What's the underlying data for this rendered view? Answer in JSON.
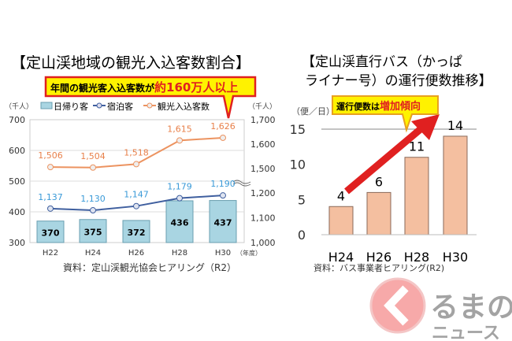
{
  "chart_data": [
    {
      "type": "bar+line",
      "title": "【定山渓地域の観光入込客数割合】",
      "callout": {
        "prefix": "年間の観光客入込客数が",
        "highlight": "約160万人以上"
      },
      "left_unit": "（千人）",
      "right_unit": "（千人）",
      "xlabel_unit": "（年度）",
      "categories": [
        "H22",
        "H24",
        "H26",
        "H28",
        "H30"
      ],
      "left_ticks": [
        "700",
        "600",
        "500",
        "400",
        "300"
      ],
      "right_ticks": [
        "1,700",
        "1,600",
        "1,500",
        "1,200",
        "1,100",
        "1,000"
      ],
      "ylim_left": [
        300,
        700
      ],
      "ylim_right": [
        1000,
        1700
      ],
      "right_axis_break": [
        1200,
        1500
      ],
      "series": [
        {
          "name": "日帰り客",
          "type": "bar",
          "axis": "left",
          "values": [
            370,
            375,
            372,
            436,
            437
          ],
          "labels": [
            "370",
            "375",
            "372",
            "436",
            "437"
          ]
        },
        {
          "name": "宿泊客",
          "type": "line",
          "axis": "right",
          "values": [
            1137,
            1130,
            1147,
            1179,
            1190
          ],
          "labels": [
            "1,137",
            "1,130",
            "1,147",
            "1,179",
            "1,190"
          ]
        },
        {
          "name": "観光入込客数",
          "type": "line",
          "axis": "right",
          "values": [
            1506,
            1504,
            1518,
            1615,
            1626
          ],
          "labels": [
            "1,506",
            "1,504",
            "1,518",
            "1,615",
            "1,626"
          ]
        }
      ],
      "source": "資料：定山渓観光協会ヒアリング（R2）",
      "legend": "top",
      "colors": {
        "bar": "#a9d5e2",
        "bar_edge": "#6a9fb0",
        "stay": "#3f5f9f",
        "stay_label": "#3a9ad8",
        "total": "#ec9360",
        "total_label": "#e8804a"
      }
    },
    {
      "type": "bar",
      "title_line1": "【定山渓直行バス（かっぱ",
      "title_line2": "ライナー号）の運行便数推移】",
      "callout": {
        "prefix": "運行便数は",
        "highlight": "増加傾向"
      },
      "unit": "（便／日）",
      "categories": [
        "H24",
        "H26",
        "H28",
        "H30"
      ],
      "values": [
        4,
        6,
        11,
        14
      ],
      "labels": [
        "4",
        "6",
        "11",
        "14"
      ],
      "y_ticks": [
        "15",
        "10",
        "5",
        "0"
      ],
      "ylim": [
        0,
        15
      ],
      "source": "資料：バス事業者ヒアリング(R2)",
      "colors": {
        "bar": "#f4bfa0",
        "bar_edge": "#8a6a5a",
        "arrow": "#e02020"
      }
    }
  ],
  "logo": {
    "text_top": "るまの",
    "text_bottom": "ニュース"
  }
}
